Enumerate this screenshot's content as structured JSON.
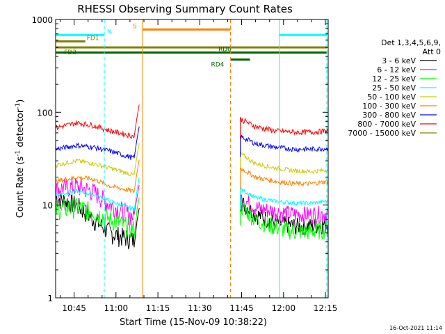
{
  "chart_data": {
    "type": "line",
    "title": "RHESSI Observing Summary Count Rates",
    "xlabel": "Start Time (15-Nov-09 10:38:22)",
    "ylabel_main": "Count Rate (s",
    "ylabel_sup1": "-1",
    "ylabel_mid": " detector",
    "ylabel_sup2": "-1",
    "ylabel_end": ")",
    "ylog": true,
    "ylim": [
      1,
      1000
    ],
    "xlim_min": [
      38.37,
      136.0
    ],
    "x_tick_labels": [
      {
        "t": 45,
        "label": "10:45"
      },
      {
        "t": 60,
        "label": "11:00"
      },
      {
        "t": 75,
        "label": "11:15"
      },
      {
        "t": 90,
        "label": "11:30"
      },
      {
        "t": 105,
        "label": "11:45"
      },
      {
        "t": 120,
        "label": "12:00"
      },
      {
        "t": 135,
        "label": "12:15"
      }
    ],
    "y_tick_labels": [
      {
        "v": 1,
        "label": "1"
      },
      {
        "v": 10,
        "label": "10"
      },
      {
        "v": 100,
        "label": "100"
      },
      {
        "v": 1000,
        "label": "1000"
      }
    ],
    "legend_header": [
      "Det 1,3,4,5,6,9,",
      "Att 0"
    ],
    "legend_placement": "right",
    "series": [
      {
        "name": "3 - 6 keV",
        "color": "#000000",
        "pre": [
          12,
          10,
          7,
          5,
          4.2
        ],
        "post": [
          11,
          8,
          6.5,
          6,
          6,
          6.2
        ]
      },
      {
        "name": "6 - 12 keV",
        "color": "#ff00ff",
        "pre": [
          15,
          16,
          14,
          10,
          7.5
        ],
        "post": [
          12,
          9.5,
          8.5,
          8,
          8,
          8.2
        ]
      },
      {
        "name": "12 - 25 keV",
        "color": "#00ff00",
        "pre": [
          9,
          9.5,
          8.5,
          7,
          5.5
        ],
        "post": [
          10,
          7,
          5.8,
          5.2,
          5.2,
          5.5
        ]
      },
      {
        "name": "25 - 50 keV",
        "color": "#00ffff",
        "pre": [
          13,
          14,
          13,
          11,
          9
        ],
        "post": [
          15,
          12,
          11,
          10.5,
          10.5,
          11
        ]
      },
      {
        "name": "50 - 100 keV",
        "color": "#cccc00",
        "pre": [
          27,
          30,
          28,
          25,
          21
        ],
        "post": [
          36,
          28,
          25,
          23.5,
          23,
          24
        ]
      },
      {
        "name": "100 - 300 keV",
        "color": "#ff8000",
        "pre": [
          18,
          20,
          19,
          16,
          14
        ],
        "post": [
          25,
          20,
          18,
          17,
          17,
          18
        ]
      },
      {
        "name": "300 - 800 keV",
        "color": "#0000ff",
        "pre": [
          40,
          44,
          42,
          38,
          32
        ],
        "post": [
          55,
          46,
          42,
          40,
          40,
          41
        ]
      },
      {
        "name": "800 - 7000 keV",
        "color": "#ff0000",
        "pre": [
          68,
          77,
          72,
          63,
          55
        ],
        "post": [
          85,
          70,
          63,
          61,
          61,
          63
        ]
      },
      {
        "name": "7000 - 15000 keV",
        "color": "#808000",
        "pre": [],
        "post": []
      }
    ],
    "pre_times": [
      38.5,
      46,
      52,
      58,
      66.5
    ],
    "post_times": [
      104.5,
      110,
      117,
      124,
      130,
      136
    ],
    "flag_bars": [
      {
        "label": "N",
        "color": "#00ffff",
        "y": 680,
        "segments": [
          [
            38.4,
            55.8
          ],
          [
            118.5,
            135.5
          ]
        ]
      },
      {
        "label": "S",
        "color": "#ff8000",
        "y": 780,
        "segments": [
          [
            69.5,
            101.0
          ]
        ]
      },
      {
        "label": "FD1",
        "color": "#808000",
        "y": 580,
        "segments": [
          [
            38.4,
            49.0
          ]
        ]
      },
      {
        "label": "FD2",
        "color": "#808000",
        "y": 500,
        "segments": [
          [
            38.4,
            135.5
          ]
        ]
      },
      {
        "label": "RD0",
        "color": "#006400",
        "y": 440,
        "segments": [
          [
            38.4,
            135.5
          ]
        ]
      },
      {
        "label": "RD4",
        "color": "#006400",
        "y": 370,
        "segments": [
          [
            101.0,
            108.0
          ]
        ]
      }
    ],
    "vertical_lines": [
      {
        "t": 55.8,
        "color": "#00ffff",
        "style": "dashed"
      },
      {
        "t": 69.5,
        "color": "#ff8000",
        "style": "solid"
      },
      {
        "t": 101.0,
        "color": "#ff8000",
        "style": "dashed"
      },
      {
        "t": 118.5,
        "color": "#00ffff",
        "style": "solid"
      },
      {
        "t": 135.5,
        "color": "#00ffff",
        "style": "dashed"
      }
    ],
    "footer": "16-Oct-2021 11:14"
  }
}
